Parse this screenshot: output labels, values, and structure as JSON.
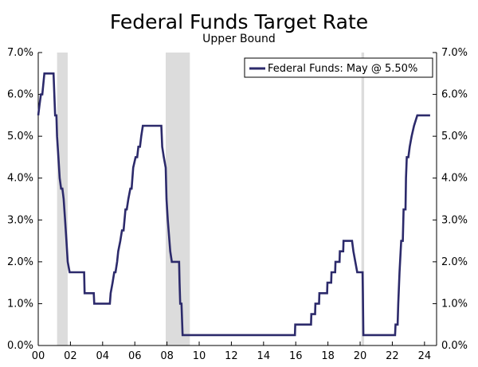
{
  "chart_data": {
    "type": "line",
    "title": "Federal Funds Target Rate",
    "subtitle": "Upper Bound",
    "xlabel": "",
    "ylabel": "",
    "xlim": [
      2000,
      2024.75
    ],
    "ylim": [
      0,
      7
    ],
    "x_ticks": [
      2000,
      2002,
      2004,
      2006,
      2008,
      2010,
      2012,
      2014,
      2016,
      2018,
      2020,
      2022,
      2024
    ],
    "x_tick_labels": [
      "00",
      "02",
      "04",
      "06",
      "08",
      "10",
      "12",
      "14",
      "16",
      "18",
      "20",
      "22",
      "24"
    ],
    "y_ticks": [
      0,
      1,
      2,
      3,
      4,
      5,
      6,
      7
    ],
    "y_tick_labels": [
      "0.0%",
      "1.0%",
      "2.0%",
      "3.0%",
      "4.0%",
      "5.0%",
      "6.0%",
      "7.0%"
    ],
    "y_tick_labels_right": [
      "0.0%",
      "1.0%",
      "2.0%",
      "3.0%",
      "4.0%",
      "5.0%",
      "6.0%",
      "7.0%"
    ],
    "grid": false,
    "legend_position": "top-right",
    "recessions": [
      {
        "start": 2001.17,
        "end": 2001.83
      },
      {
        "start": 2007.92,
        "end": 2009.42
      },
      {
        "start": 2020.08,
        "end": 2020.25
      }
    ],
    "recession_color": "#dcdcdc",
    "series": [
      {
        "name": "Federal Funds: May @ 5.50%",
        "color": "#2c2a6b",
        "points": [
          [
            2000.0,
            5.5
          ],
          [
            2000.08,
            5.75
          ],
          [
            2000.17,
            6.0
          ],
          [
            2000.25,
            6.0
          ],
          [
            2000.38,
            6.5
          ],
          [
            2000.5,
            6.5
          ],
          [
            2000.75,
            6.5
          ],
          [
            2000.95,
            6.5
          ],
          [
            2001.0,
            6.0
          ],
          [
            2001.05,
            5.5
          ],
          [
            2001.13,
            5.5
          ],
          [
            2001.17,
            5.0
          ],
          [
            2001.25,
            4.5
          ],
          [
            2001.33,
            4.0
          ],
          [
            2001.42,
            3.75
          ],
          [
            2001.5,
            3.75
          ],
          [
            2001.58,
            3.5
          ],
          [
            2001.67,
            3.0
          ],
          [
            2001.75,
            2.5
          ],
          [
            2001.83,
            2.0
          ],
          [
            2001.95,
            1.75
          ],
          [
            2002.2,
            1.75
          ],
          [
            2002.5,
            1.75
          ],
          [
            2002.85,
            1.75
          ],
          [
            2002.88,
            1.25
          ],
          [
            2003.3,
            1.25
          ],
          [
            2003.45,
            1.25
          ],
          [
            2003.48,
            1.0
          ],
          [
            2004.0,
            1.0
          ],
          [
            2004.45,
            1.0
          ],
          [
            2004.5,
            1.25
          ],
          [
            2004.62,
            1.5
          ],
          [
            2004.72,
            1.75
          ],
          [
            2004.8,
            1.75
          ],
          [
            2004.9,
            2.0
          ],
          [
            2004.97,
            2.25
          ],
          [
            2005.1,
            2.5
          ],
          [
            2005.2,
            2.75
          ],
          [
            2005.3,
            2.75
          ],
          [
            2005.42,
            3.25
          ],
          [
            2005.5,
            3.25
          ],
          [
            2005.6,
            3.5
          ],
          [
            2005.72,
            3.75
          ],
          [
            2005.8,
            3.75
          ],
          [
            2005.9,
            4.25
          ],
          [
            2006.05,
            4.5
          ],
          [
            2006.15,
            4.5
          ],
          [
            2006.22,
            4.75
          ],
          [
            2006.32,
            4.75
          ],
          [
            2006.4,
            5.0
          ],
          [
            2006.5,
            5.25
          ],
          [
            2007.0,
            5.25
          ],
          [
            2007.65,
            5.25
          ],
          [
            2007.7,
            4.75
          ],
          [
            2007.8,
            4.5
          ],
          [
            2007.92,
            4.25
          ],
          [
            2007.97,
            3.5
          ],
          [
            2008.05,
            3.0
          ],
          [
            2008.2,
            2.25
          ],
          [
            2008.3,
            2.0
          ],
          [
            2008.75,
            2.0
          ],
          [
            2008.78,
            1.5
          ],
          [
            2008.82,
            1.0
          ],
          [
            2008.9,
            1.0
          ],
          [
            2008.97,
            0.25
          ],
          [
            2010.0,
            0.25
          ],
          [
            2012.0,
            0.25
          ],
          [
            2014.0,
            0.25
          ],
          [
            2015.95,
            0.25
          ],
          [
            2015.97,
            0.5
          ],
          [
            2016.5,
            0.5
          ],
          [
            2016.95,
            0.5
          ],
          [
            2016.97,
            0.75
          ],
          [
            2017.2,
            0.75
          ],
          [
            2017.22,
            1.0
          ],
          [
            2017.45,
            1.0
          ],
          [
            2017.47,
            1.25
          ],
          [
            2017.95,
            1.25
          ],
          [
            2017.97,
            1.5
          ],
          [
            2018.2,
            1.5
          ],
          [
            2018.22,
            1.75
          ],
          [
            2018.45,
            1.75
          ],
          [
            2018.47,
            2.0
          ],
          [
            2018.72,
            2.0
          ],
          [
            2018.74,
            2.25
          ],
          [
            2018.95,
            2.25
          ],
          [
            2018.97,
            2.5
          ],
          [
            2019.5,
            2.5
          ],
          [
            2019.58,
            2.25
          ],
          [
            2019.7,
            2.0
          ],
          [
            2019.82,
            1.75
          ],
          [
            2020.15,
            1.75
          ],
          [
            2020.17,
            1.25
          ],
          [
            2020.2,
            0.25
          ],
          [
            2021.0,
            0.25
          ],
          [
            2022.0,
            0.25
          ],
          [
            2022.17,
            0.25
          ],
          [
            2022.2,
            0.5
          ],
          [
            2022.33,
            0.5
          ],
          [
            2022.37,
            1.0
          ],
          [
            2022.45,
            1.75
          ],
          [
            2022.55,
            2.5
          ],
          [
            2022.65,
            2.5
          ],
          [
            2022.7,
            3.25
          ],
          [
            2022.82,
            3.25
          ],
          [
            2022.85,
            4.0
          ],
          [
            2022.9,
            4.5
          ],
          [
            2023.0,
            4.5
          ],
          [
            2023.08,
            4.75
          ],
          [
            2023.2,
            5.0
          ],
          [
            2023.35,
            5.25
          ],
          [
            2023.55,
            5.5
          ],
          [
            2024.0,
            5.5
          ],
          [
            2024.35,
            5.5
          ]
        ]
      }
    ]
  }
}
